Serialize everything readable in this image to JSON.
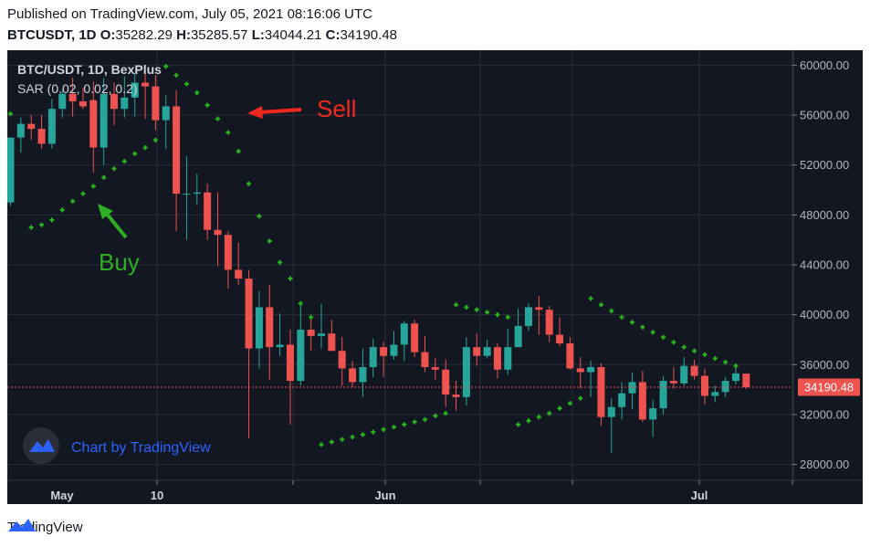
{
  "header": {
    "published": "Published on TradingView.com, July 05, 2021 08:16:06 UTC",
    "symbol": "BTCUSDT, 1D",
    "o_label": "O:",
    "o_val": "35282.29",
    "h_label": "H:",
    "h_val": "35285.57",
    "l_label": "L:",
    "l_val": "34044.21",
    "c_label": "C:",
    "c_val": "34190.48"
  },
  "legend": {
    "symbol": "BTC/USDT, 1D, BexPlus",
    "indicator": "SAR (0.02, 0.02, 0.2)"
  },
  "annotations": {
    "sell": "Sell",
    "buy": "Buy"
  },
  "watermark": "Chart by TradingView",
  "footer": {
    "brand": "TradingView"
  },
  "colors": {
    "background": "#131722",
    "grid": "#2a2e39",
    "up": "#26a69a",
    "down": "#ef5350",
    "sar": "#2ab41e",
    "sell_arrow": "#f0281e",
    "buy_arrow": "#2eae22",
    "last_price": "#ef5350"
  },
  "chart_data": {
    "type": "candlestick",
    "title": "BTC/USDT, 1D, BexPlus",
    "ylim": [
      26800,
      61200
    ],
    "y_ticks": [
      "60000.00",
      "56000.00",
      "52000.00",
      "48000.00",
      "44000.00",
      "40000.00",
      "36000.00",
      "32000.00",
      "28000.00"
    ],
    "x_ticks": [
      "May",
      "10",
      "Jun",
      "Jul"
    ],
    "last_price": "34190.48",
    "grid": true,
    "candles": [
      {
        "o": 49000,
        "h": 54000,
        "l": 48700,
        "c": 54200
      },
      {
        "o": 54200,
        "h": 55800,
        "l": 53000,
        "c": 55300
      },
      {
        "o": 55300,
        "h": 56000,
        "l": 54000,
        "c": 54900
      },
      {
        "o": 54900,
        "h": 56000,
        "l": 53300,
        "c": 53700
      },
      {
        "o": 53700,
        "h": 57300,
        "l": 53300,
        "c": 56500
      },
      {
        "o": 56500,
        "h": 58000,
        "l": 55800,
        "c": 57700
      },
      {
        "o": 57700,
        "h": 59000,
        "l": 55900,
        "c": 57100
      },
      {
        "o": 57100,
        "h": 58200,
        "l": 56500,
        "c": 56700
      },
      {
        "o": 57200,
        "h": 58700,
        "l": 51400,
        "c": 53400
      },
      {
        "o": 53400,
        "h": 59000,
        "l": 52000,
        "c": 57700
      },
      {
        "o": 57700,
        "h": 58600,
        "l": 55200,
        "c": 56500
      },
      {
        "o": 56500,
        "h": 59100,
        "l": 55800,
        "c": 57400
      },
      {
        "o": 57400,
        "h": 59400,
        "l": 55900,
        "c": 58600
      },
      {
        "o": 58600,
        "h": 60000,
        "l": 55700,
        "c": 58300
      },
      {
        "o": 58300,
        "h": 59200,
        "l": 54800,
        "c": 55600
      },
      {
        "o": 55600,
        "h": 57600,
        "l": 53300,
        "c": 56700
      },
      {
        "o": 56700,
        "h": 58000,
        "l": 46700,
        "c": 49700
      },
      {
        "o": 49700,
        "h": 52700,
        "l": 46000,
        "c": 49700
      },
      {
        "o": 49700,
        "h": 51300,
        "l": 48800,
        "c": 49800
      },
      {
        "o": 49800,
        "h": 50500,
        "l": 46000,
        "c": 46800
      },
      {
        "o": 46800,
        "h": 49800,
        "l": 43900,
        "c": 46400
      },
      {
        "o": 46400,
        "h": 46700,
        "l": 42100,
        "c": 43600
      },
      {
        "o": 43600,
        "h": 45800,
        "l": 42400,
        "c": 42900
      },
      {
        "o": 42900,
        "h": 43600,
        "l": 30100,
        "c": 37300
      },
      {
        "o": 37300,
        "h": 41900,
        "l": 35700,
        "c": 40600
      },
      {
        "o": 40600,
        "h": 42400,
        "l": 34800,
        "c": 37400
      },
      {
        "o": 37400,
        "h": 40100,
        "l": 36700,
        "c": 37600
      },
      {
        "o": 37600,
        "h": 38800,
        "l": 31200,
        "c": 34700
      },
      {
        "o": 34700,
        "h": 40800,
        "l": 34300,
        "c": 38800
      },
      {
        "o": 38800,
        "h": 40000,
        "l": 37100,
        "c": 38300
      },
      {
        "o": 38300,
        "h": 40900,
        "l": 37300,
        "c": 38500
      },
      {
        "o": 38500,
        "h": 39600,
        "l": 37200,
        "c": 37100
      },
      {
        "o": 37100,
        "h": 38200,
        "l": 34300,
        "c": 35700
      },
      {
        "o": 35700,
        "h": 36300,
        "l": 34200,
        "c": 34600
      },
      {
        "o": 34600,
        "h": 37300,
        "l": 33400,
        "c": 35800
      },
      {
        "o": 35800,
        "h": 38100,
        "l": 35000,
        "c": 37400
      },
      {
        "o": 37400,
        "h": 37800,
        "l": 35000,
        "c": 36700
      },
      {
        "o": 36700,
        "h": 38700,
        "l": 36400,
        "c": 37600
      },
      {
        "o": 37600,
        "h": 39500,
        "l": 36300,
        "c": 39300
      },
      {
        "o": 39300,
        "h": 39600,
        "l": 36600,
        "c": 37000
      },
      {
        "o": 37000,
        "h": 38300,
        "l": 35400,
        "c": 35800
      },
      {
        "o": 35800,
        "h": 36500,
        "l": 34800,
        "c": 35600
      },
      {
        "o": 35600,
        "h": 36400,
        "l": 32600,
        "c": 33600
      },
      {
        "o": 33600,
        "h": 34700,
        "l": 32300,
        "c": 33400
      },
      {
        "o": 33400,
        "h": 38200,
        "l": 32700,
        "c": 37400
      },
      {
        "o": 37400,
        "h": 38500,
        "l": 35900,
        "c": 36700
      },
      {
        "o": 36700,
        "h": 38000,
        "l": 36500,
        "c": 37400
      },
      {
        "o": 37400,
        "h": 37700,
        "l": 34900,
        "c": 35600
      },
      {
        "o": 35600,
        "h": 38900,
        "l": 35200,
        "c": 37400
      },
      {
        "o": 37400,
        "h": 40500,
        "l": 37400,
        "c": 39100
      },
      {
        "o": 39100,
        "h": 40900,
        "l": 38700,
        "c": 40600
      },
      {
        "o": 40600,
        "h": 41500,
        "l": 38400,
        "c": 40400
      },
      {
        "o": 40400,
        "h": 40700,
        "l": 37800,
        "c": 38400
      },
      {
        "o": 38400,
        "h": 39800,
        "l": 37500,
        "c": 37700
      },
      {
        "o": 37700,
        "h": 38200,
        "l": 35600,
        "c": 35700
      },
      {
        "o": 35700,
        "h": 36600,
        "l": 34100,
        "c": 35400
      },
      {
        "o": 35400,
        "h": 36300,
        "l": 33400,
        "c": 35800
      },
      {
        "o": 35800,
        "h": 36100,
        "l": 31100,
        "c": 31800
      },
      {
        "o": 31800,
        "h": 33300,
        "l": 28900,
        "c": 32600
      },
      {
        "o": 32600,
        "h": 34600,
        "l": 31600,
        "c": 33700
      },
      {
        "o": 33700,
        "h": 35400,
        "l": 32400,
        "c": 34600
      },
      {
        "o": 34600,
        "h": 35500,
        "l": 31400,
        "c": 31600
      },
      {
        "o": 31600,
        "h": 33200,
        "l": 30200,
        "c": 32500
      },
      {
        "o": 32500,
        "h": 35100,
        "l": 32000,
        "c": 34700
      },
      {
        "o": 34700,
        "h": 35800,
        "l": 34100,
        "c": 34500
      },
      {
        "o": 34500,
        "h": 36600,
        "l": 34300,
        "c": 35900
      },
      {
        "o": 35900,
        "h": 36400,
        "l": 34800,
        "c": 35100
      },
      {
        "o": 35100,
        "h": 35700,
        "l": 32800,
        "c": 33500
      },
      {
        "o": 33500,
        "h": 34300,
        "l": 33000,
        "c": 33800
      },
      {
        "o": 33800,
        "h": 35000,
        "l": 33400,
        "c": 34700
      },
      {
        "o": 34700,
        "h": 35900,
        "l": 34400,
        "c": 35300
      },
      {
        "o": 35282.29,
        "h": 35285.57,
        "l": 34044.21,
        "c": 34190.48
      }
    ],
    "sar": [
      {
        "i": 0,
        "v": 56100
      },
      {
        "i": 2,
        "v": 47000
      },
      {
        "i": 3,
        "v": 47200
      },
      {
        "i": 4,
        "v": 47600
      },
      {
        "i": 5,
        "v": 48400
      },
      {
        "i": 6,
        "v": 49100
      },
      {
        "i": 7,
        "v": 49700
      },
      {
        "i": 8,
        "v": 50300
      },
      {
        "i": 9,
        "v": 51000
      },
      {
        "i": 10,
        "v": 51700
      },
      {
        "i": 11,
        "v": 52300
      },
      {
        "i": 12,
        "v": 52900
      },
      {
        "i": 13,
        "v": 53400
      },
      {
        "i": 14,
        "v": 54000
      },
      {
        "i": 15,
        "v": 59900
      },
      {
        "i": 16,
        "v": 59200
      },
      {
        "i": 17,
        "v": 58500
      },
      {
        "i": 18,
        "v": 57800
      },
      {
        "i": 19,
        "v": 56800
      },
      {
        "i": 20,
        "v": 55700
      },
      {
        "i": 21,
        "v": 54600
      },
      {
        "i": 22,
        "v": 53100
      },
      {
        "i": 23,
        "v": 50500
      },
      {
        "i": 24,
        "v": 47900
      },
      {
        "i": 25,
        "v": 45900
      },
      {
        "i": 26,
        "v": 44200
      },
      {
        "i": 27,
        "v": 42900
      },
      {
        "i": 28,
        "v": 40900
      },
      {
        "i": 29,
        "v": 39800
      },
      {
        "i": 30,
        "v": 29600
      },
      {
        "i": 31,
        "v": 29800
      },
      {
        "i": 32,
        "v": 30000
      },
      {
        "i": 33,
        "v": 30200
      },
      {
        "i": 34,
        "v": 30400
      },
      {
        "i": 35,
        "v": 30600
      },
      {
        "i": 36,
        "v": 30800
      },
      {
        "i": 37,
        "v": 31000
      },
      {
        "i": 38,
        "v": 31200
      },
      {
        "i": 39,
        "v": 31400
      },
      {
        "i": 40,
        "v": 31600
      },
      {
        "i": 41,
        "v": 31900
      },
      {
        "i": 42,
        "v": 32100
      },
      {
        "i": 43,
        "v": 40800
      },
      {
        "i": 44,
        "v": 40600
      },
      {
        "i": 45,
        "v": 40400
      },
      {
        "i": 46,
        "v": 40200
      },
      {
        "i": 47,
        "v": 40000
      },
      {
        "i": 48,
        "v": 39800
      },
      {
        "i": 49,
        "v": 31200
      },
      {
        "i": 50,
        "v": 31500
      },
      {
        "i": 51,
        "v": 31800
      },
      {
        "i": 52,
        "v": 32100
      },
      {
        "i": 53,
        "v": 32500
      },
      {
        "i": 54,
        "v": 32900
      },
      {
        "i": 55,
        "v": 33300
      },
      {
        "i": 56,
        "v": 41300
      },
      {
        "i": 57,
        "v": 40800
      },
      {
        "i": 58,
        "v": 40300
      },
      {
        "i": 59,
        "v": 39800
      },
      {
        "i": 60,
        "v": 39400
      },
      {
        "i": 61,
        "v": 39000
      },
      {
        "i": 62,
        "v": 38600
      },
      {
        "i": 63,
        "v": 38200
      },
      {
        "i": 64,
        "v": 37800
      },
      {
        "i": 65,
        "v": 37400
      },
      {
        "i": 66,
        "v": 37100
      },
      {
        "i": 67,
        "v": 36800
      },
      {
        "i": 68,
        "v": 36500
      },
      {
        "i": 69,
        "v": 36200
      },
      {
        "i": 70,
        "v": 35900
      }
    ]
  }
}
